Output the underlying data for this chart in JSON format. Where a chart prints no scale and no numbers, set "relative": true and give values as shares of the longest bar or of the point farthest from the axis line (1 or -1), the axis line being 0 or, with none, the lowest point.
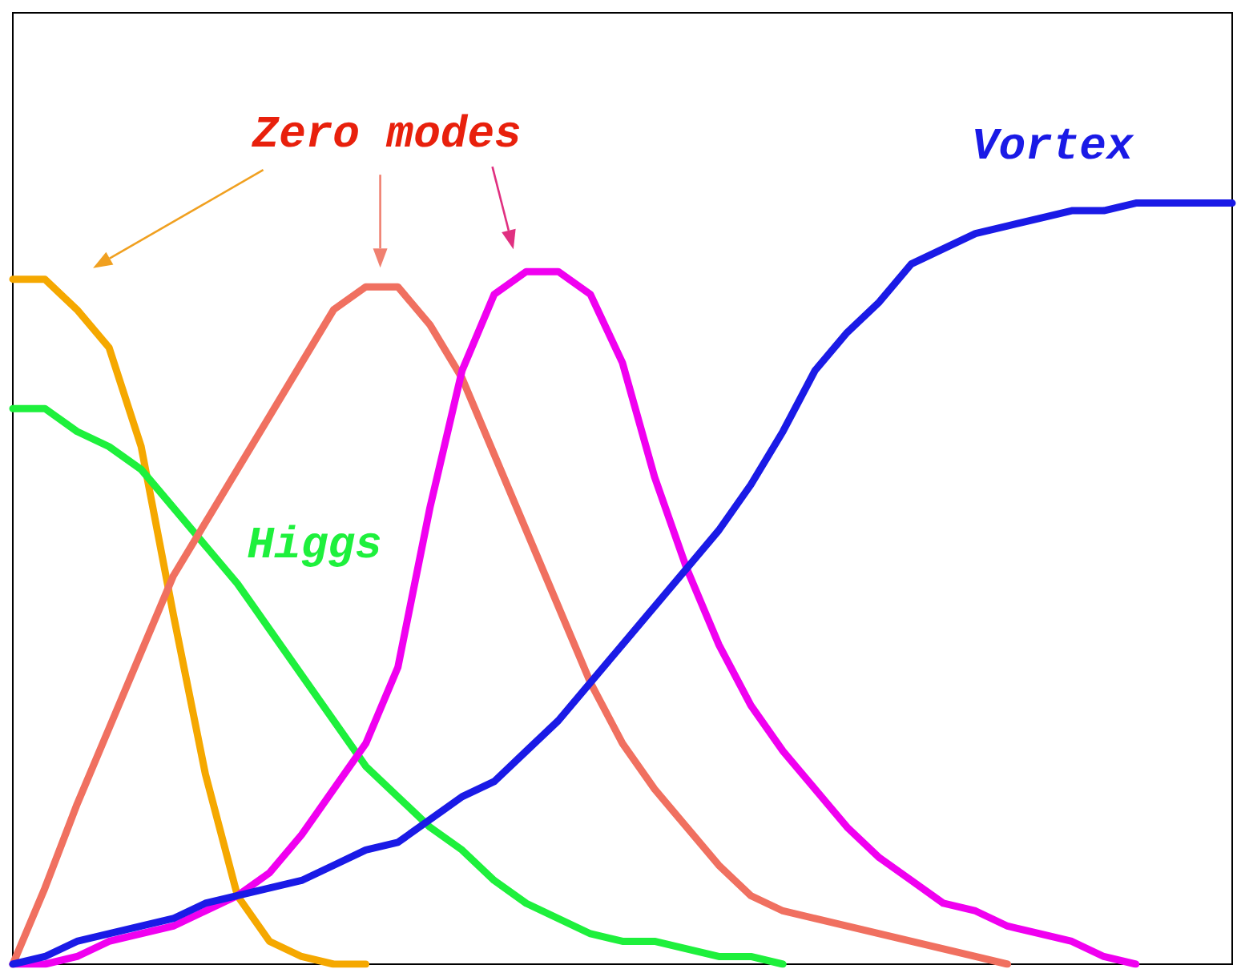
{
  "chart_data": {
    "type": "line",
    "relative": true,
    "marker": "none",
    "annotations": [
      "Zero modes"
    ],
    "categories": [
      null,
      null,
      null,
      null,
      null,
      null,
      null,
      null,
      null,
      null,
      null,
      null,
      null,
      null,
      null,
      null,
      null,
      null,
      null,
      null,
      null,
      null,
      null,
      null,
      null,
      null,
      null,
      null,
      null,
      null,
      null,
      null,
      null,
      null,
      null,
      null,
      null,
      null,
      null
    ],
    "series": [
      {
        "color": "#f5a800",
        "values": [
          0.9,
          0.9,
          0.86,
          0.81,
          0.68,
          0.46,
          0.25,
          0.09,
          0.03,
          0.01,
          0,
          0,
          null,
          null,
          null,
          null,
          null,
          null,
          null,
          null,
          null,
          null,
          null,
          null,
          null,
          null,
          null,
          null,
          null,
          null,
          null,
          null,
          null,
          null,
          null,
          null,
          null,
          null,
          null
        ]
      },
      {
        "name": "Higgs",
        "color": "#1ef03c",
        "values": [
          0.73,
          0.73,
          0.7,
          0.68,
          0.65,
          0.6,
          0.55,
          0.5,
          0.44,
          0.38,
          0.32,
          0.26,
          0.22,
          0.18,
          0.15,
          0.11,
          0.08,
          0.06,
          0.04,
          0.03,
          0.03,
          0.02,
          0.01,
          0.01,
          0,
          null,
          null,
          null,
          null,
          null,
          null,
          null,
          null,
          null,
          null,
          null,
          null,
          null,
          null
        ]
      },
      {
        "color": "#f07060",
        "values": [
          0,
          0.1,
          0.21,
          0.31,
          0.41,
          0.51,
          0.58,
          0.65,
          0.72,
          0.79,
          0.86,
          0.89,
          0.89,
          0.84,
          0.77,
          0.67,
          0.57,
          0.47,
          0.37,
          0.29,
          0.23,
          0.18,
          0.13,
          0.09,
          0.07,
          0.06,
          0.05,
          0.04,
          0.03,
          0.02,
          0.01,
          0,
          null,
          null,
          null,
          null,
          null,
          null,
          null
        ]
      },
      {
        "color": "#f000f0",
        "values": [
          0,
          0,
          0.01,
          0.03,
          0.04,
          0.05,
          0.07,
          0.09,
          0.12,
          0.17,
          0.23,
          0.29,
          0.39,
          0.6,
          0.78,
          0.88,
          0.91,
          0.91,
          0.88,
          0.79,
          0.64,
          0.52,
          0.42,
          0.34,
          0.28,
          0.23,
          0.18,
          0.14,
          0.11,
          0.08,
          0.07,
          0.05,
          0.04,
          0.03,
          0.01,
          0,
          null,
          null,
          null
        ]
      },
      {
        "name": "Vortex",
        "color": "#1a1ae6",
        "values": [
          0,
          0.01,
          0.03,
          0.04,
          0.05,
          0.06,
          0.08,
          0.09,
          0.1,
          0.11,
          0.13,
          0.15,
          0.16,
          0.19,
          0.22,
          0.24,
          0.28,
          0.32,
          0.37,
          0.42,
          0.47,
          0.52,
          0.57,
          0.63,
          0.7,
          0.78,
          0.83,
          0.87,
          0.92,
          0.94,
          0.96,
          0.97,
          0.98,
          0.99,
          0.99,
          1,
          1,
          1,
          1
        ]
      }
    ]
  }
}
